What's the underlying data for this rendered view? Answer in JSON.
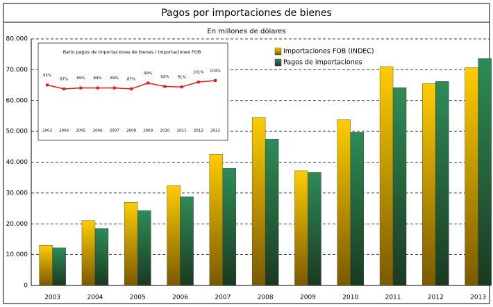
{
  "chart_data": [
    {
      "type": "bar",
      "title": "Pagos por importaciones de bienes",
      "subtitle": "En millones de dólares",
      "categories": [
        "2003",
        "2004",
        "2005",
        "2006",
        "2007",
        "2008",
        "2009",
        "2010",
        "2011",
        "2012",
        "2013"
      ],
      "series": [
        {
          "name": "Importaciones FOB (INDEC)",
          "color": "#ffcc00",
          "values": [
            13000,
            21000,
            27000,
            32400,
            42500,
            54500,
            37200,
            53800,
            71000,
            65500,
            70700
          ]
        },
        {
          "name": "Pagos de importaciones",
          "color": "#2e8b57",
          "values": [
            12200,
            18500,
            24300,
            28800,
            38000,
            47500,
            36700,
            49700,
            64200,
            66200,
            73600
          ]
        }
      ],
      "ylim": [
        0,
        80000
      ],
      "yticks": [
        0,
        {
          "value": 10000,
          "label": "10.000"
        },
        {
          "value": 20000,
          "label": "20.000"
        },
        {
          "value": 30000,
          "label": "30.000"
        },
        {
          "value": 40000,
          "label": "40.000"
        },
        {
          "value": 50000,
          "label": "50.000"
        },
        {
          "value": 60000,
          "label": "60.000"
        },
        {
          "value": 70000,
          "label": "70.000"
        },
        {
          "value": 80000,
          "label": "80.000"
        }
      ],
      "grid": true,
      "legend": "top-right"
    },
    {
      "type": "line",
      "title": "Ratio pagos de importaciones de bienes / importaciones FOB",
      "categories": [
        "2003",
        "2004",
        "2005",
        "2006",
        "2007",
        "2008",
        "2009",
        "2010",
        "2011",
        "2012",
        "2013"
      ],
      "values": [
        95,
        87,
        89,
        89,
        89,
        87,
        99,
        92,
        91,
        101,
        104
      ],
      "value_labels": [
        "95%",
        "87%",
        "89%",
        "89%",
        "89%",
        "87%",
        "99%",
        "92%",
        "91%",
        "101%",
        "104%"
      ],
      "color": "#e41a1c"
    }
  ]
}
